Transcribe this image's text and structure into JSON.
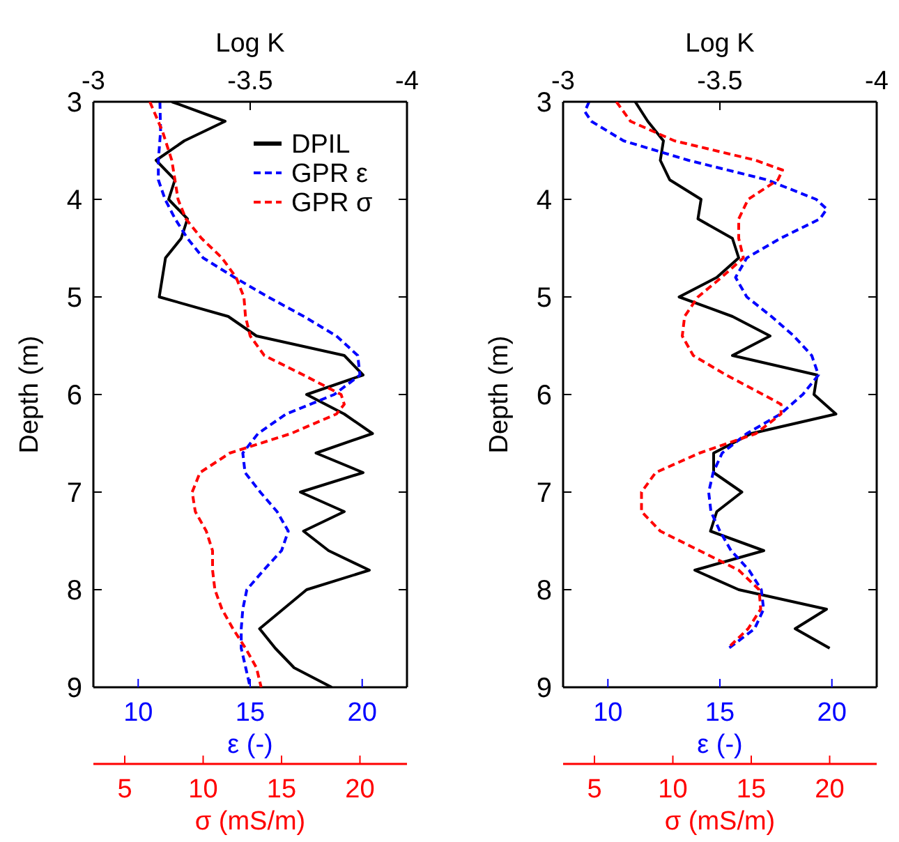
{
  "chart_data": [
    {
      "type": "line",
      "ylabel": "Depth (m)",
      "xlabel": "ε (-)",
      "x2label": "Log K",
      "ylim": [
        9,
        3
      ],
      "yticks": [
        3,
        4,
        5,
        6,
        7,
        8,
        9
      ],
      "xlim": [
        8,
        22
      ],
      "xticks": [
        10,
        15,
        20
      ],
      "x2lim": [
        -3,
        -4
      ],
      "x2ticks": [
        -3,
        -3.5,
        -4
      ],
      "legend": "top right",
      "series": [
        {
          "name": "DPIL",
          "color": "#000000",
          "line_style": "solid",
          "axis": "x2",
          "x": [
            -3.25,
            -3.42,
            -3.29,
            -3.2,
            -3.26,
            -3.24,
            -3.3,
            -3.28,
            -3.23,
            -3.22,
            -3.21,
            -3.43,
            -3.52,
            -3.8,
            -3.86,
            -3.68,
            -3.8,
            -3.89,
            -3.71,
            -3.86,
            -3.66,
            -3.8,
            -3.67,
            -3.75,
            -3.88,
            -3.68,
            -3.53,
            -3.58,
            -3.64,
            -3.76
          ],
          "values": [
            3,
            3.2,
            3.4,
            3.6,
            3.8,
            4,
            4.2,
            4.4,
            4.6,
            4.8,
            5,
            5.2,
            5.4,
            5.6,
            5.8,
            6,
            6.2,
            6.4,
            6.6,
            6.8,
            7,
            7.2,
            7.4,
            7.6,
            7.8,
            8,
            8.4,
            8.6,
            8.8,
            9
          ]
        },
        {
          "name": "GPR ε",
          "color": "#0000ff",
          "line_style": "dashed",
          "x": [
            10.97,
            11,
            10.9,
            10.9,
            11.2,
            11.65,
            12.2,
            12.9,
            14.3,
            15.8,
            17.4,
            18.85,
            19.8,
            19.9,
            18.75,
            16.6,
            15.35,
            14.67,
            14.77,
            15.45,
            16.2,
            16.7,
            16.4,
            15.6,
            14.85,
            14.67,
            14.6,
            14.6,
            14.8,
            15
          ],
          "values": [
            3,
            3.3,
            3.6,
            3.8,
            4,
            4.2,
            4.4,
            4.6,
            4.8,
            5,
            5.2,
            5.4,
            5.6,
            5.8,
            6,
            6.2,
            6.4,
            6.6,
            6.8,
            7,
            7.2,
            7.4,
            7.6,
            7.8,
            8,
            8.2,
            8.4,
            8.6,
            8.8,
            9
          ]
        }
      ]
    },
    {
      "type": "line",
      "xlabel": "σ (mS/m)",
      "ylim": [
        9,
        3
      ],
      "xlim": [
        3,
        23
      ],
      "xticks": [
        5,
        10,
        15,
        20
      ],
      "tick_labels": "x",
      "legend": "top right",
      "series": [
        {
          "name": "GPR σ",
          "color": "#ff0000",
          "line_style": "dashed",
          "x": [
            6.6,
            7.4,
            8,
            8.2,
            8.4,
            8.9,
            9.9,
            11.2,
            12.1,
            12.6,
            12.7,
            13,
            13.9,
            16.4,
            18.8,
            19,
            18.5,
            15.6,
            11.7,
            9.8,
            9.3,
            9.5,
            10.2,
            10.6,
            10.6,
            10.75,
            11.2,
            11.9,
            12.7,
            13.4,
            13.7
          ],
          "values": [
            3,
            3.3,
            3.6,
            3.8,
            4,
            4.2,
            4.4,
            4.6,
            4.8,
            5,
            5.2,
            5.4,
            5.6,
            5.8,
            6,
            6.1,
            6.2,
            6.4,
            6.6,
            6.8,
            7,
            7.2,
            7.4,
            7.6,
            7.8,
            8,
            8.2,
            8.4,
            8.6,
            8.8,
            9
          ]
        }
      ]
    },
    {
      "type": "line",
      "ylabel": "Depth (m)",
      "xlabel": "ε (-)",
      "x2label": "Log K",
      "ylim": [
        9,
        3
      ],
      "yticks": [
        3,
        4,
        5,
        6,
        7,
        8,
        9
      ],
      "xlim": [
        8,
        22
      ],
      "xticks": [
        10,
        15,
        20
      ],
      "x2lim": [
        -3,
        -4
      ],
      "x2ticks": [
        -3,
        -3.5,
        -4
      ],
      "series": [
        {
          "color": "#000000",
          "line_style": "solid",
          "axis": "x2",
          "x": [
            -3.23,
            -3.27,
            -3.32,
            -3.31,
            -3.34,
            -3.44,
            -3.43,
            -3.54,
            -3.56,
            -3.49,
            -3.37,
            -3.54,
            -3.66,
            -3.54,
            -3.81,
            -3.8,
            -3.87,
            -3.6,
            -3.48,
            -3.48,
            -3.57,
            -3.49,
            -3.47,
            -3.64,
            -3.42,
            -3.56,
            -3.84,
            -3.74,
            -3.85
          ],
          "values": [
            3,
            3.2,
            3.4,
            3.6,
            3.8,
            4,
            4.2,
            4.4,
            4.6,
            4.8,
            5,
            5.2,
            5.4,
            5.6,
            5.8,
            6,
            6.2,
            6.4,
            6.6,
            6.8,
            7,
            7.2,
            7.4,
            7.6,
            7.8,
            8,
            8.2,
            8.4,
            8.6
          ]
        },
        {
          "color": "#0000ff",
          "line_style": "dashed",
          "x": [
            9.16,
            8.97,
            9.26,
            10.7,
            13.6,
            17.1,
            19.3,
            19.77,
            19.47,
            17.7,
            16.2,
            15.7,
            16.2,
            17.3,
            18.3,
            19.1,
            19.4,
            18.7,
            17.7,
            16.2,
            15.1,
            14.7,
            14.5,
            14.6,
            15,
            15.5,
            16.3,
            16.85,
            16.95,
            16.55,
            15.4
          ],
          "values": [
            3,
            3.1,
            3.2,
            3.4,
            3.6,
            3.8,
            4,
            4.1,
            4.2,
            4.4,
            4.6,
            4.8,
            5,
            5.2,
            5.4,
            5.6,
            5.8,
            6,
            6.2,
            6.4,
            6.6,
            6.8,
            7,
            7.2,
            7.4,
            7.6,
            7.8,
            8,
            8.2,
            8.4,
            8.6
          ]
        }
      ]
    },
    {
      "type": "line",
      "xlabel": "σ (mS/m)",
      "ylim": [
        9,
        3
      ],
      "xlim": [
        3,
        23
      ],
      "xticks": [
        5,
        10,
        15,
        20
      ],
      "tick_labels": "x",
      "series": [
        {
          "color": "#ff0000",
          "line_style": "dashed",
          "x": [
            6.4,
            7.3,
            10.1,
            15.3,
            17,
            16.7,
            14.8,
            14.2,
            14.2,
            14.5,
            13.1,
            11.6,
            10.75,
            10.6,
            11.3,
            13.4,
            15.75,
            16.9,
            16.9,
            15.3,
            11.7,
            8.9,
            8,
            8,
            9.2,
            11.7,
            14.2,
            15.5,
            15.6,
            14.8,
            13.5
          ],
          "values": [
            3,
            3.2,
            3.4,
            3.6,
            3.7,
            3.8,
            4,
            4.2,
            4.4,
            4.6,
            4.8,
            5,
            5.2,
            5.4,
            5.6,
            5.8,
            6,
            6.1,
            6.2,
            6.4,
            6.6,
            6.8,
            7,
            7.2,
            7.4,
            7.6,
            7.8,
            8,
            8.2,
            8.4,
            8.6
          ]
        }
      ]
    }
  ]
}
